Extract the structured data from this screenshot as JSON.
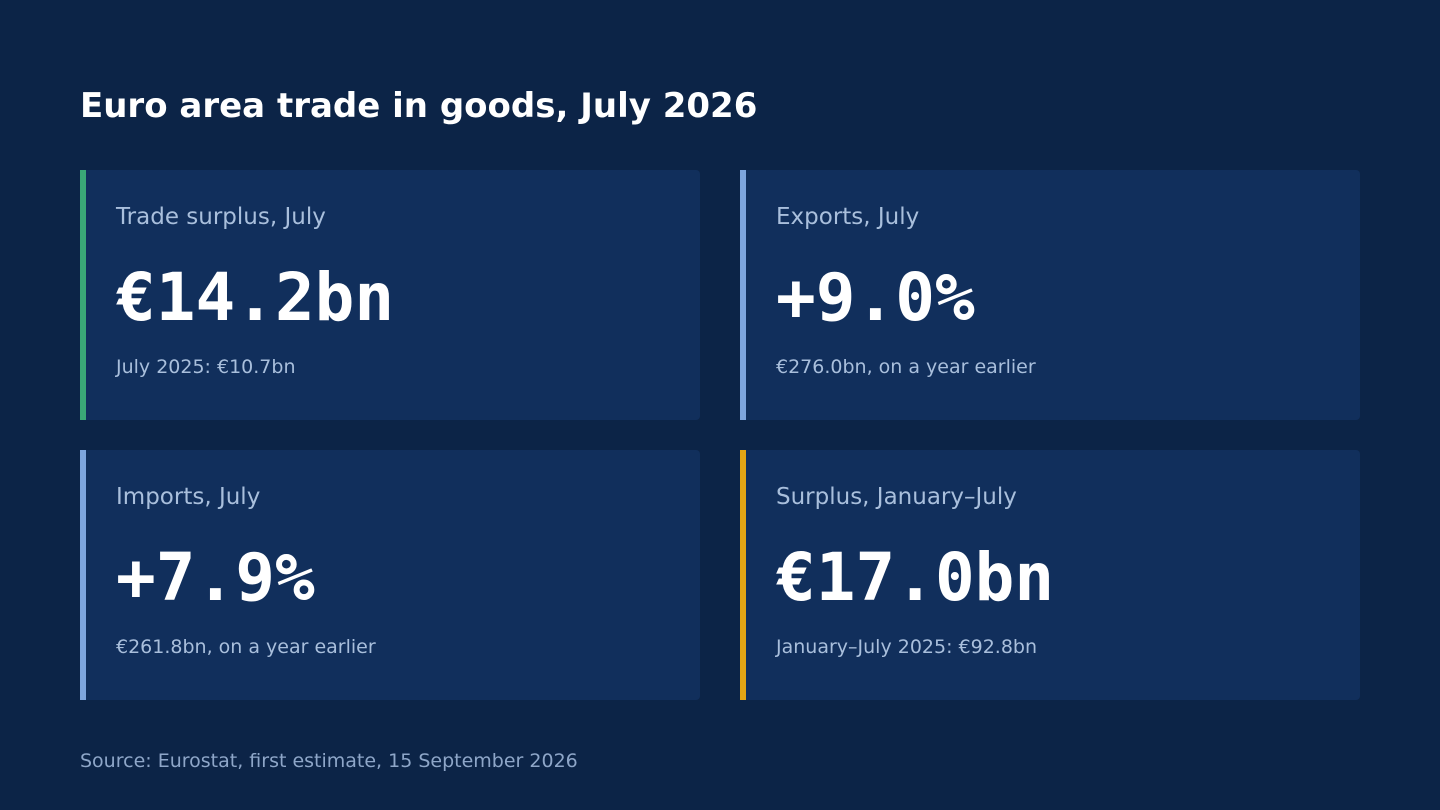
{
  "header": {
    "title": "Euro area trade in goods, July 2026"
  },
  "cards": [
    {
      "label": "Trade surplus, July",
      "value": "€14.2bn",
      "note": "July 2025: €10.7bn",
      "accent": "#3aa877"
    },
    {
      "label": "Exports, July",
      "value": "+9.0%",
      "note": "€276.0bn, on a year earlier",
      "accent": "#7ea6de"
    },
    {
      "label": "Imports, July",
      "value": "+7.9%",
      "note": "€261.8bn, on a year earlier",
      "accent": "#7ea6de"
    },
    {
      "label": "Surplus, January–July",
      "value": "€17.0bn",
      "note": "January–July 2025: €92.8bn",
      "accent": "#e3a514"
    }
  ],
  "footer": {
    "source": "Source: Eurostat, first estimate, 15 September 2026"
  }
}
